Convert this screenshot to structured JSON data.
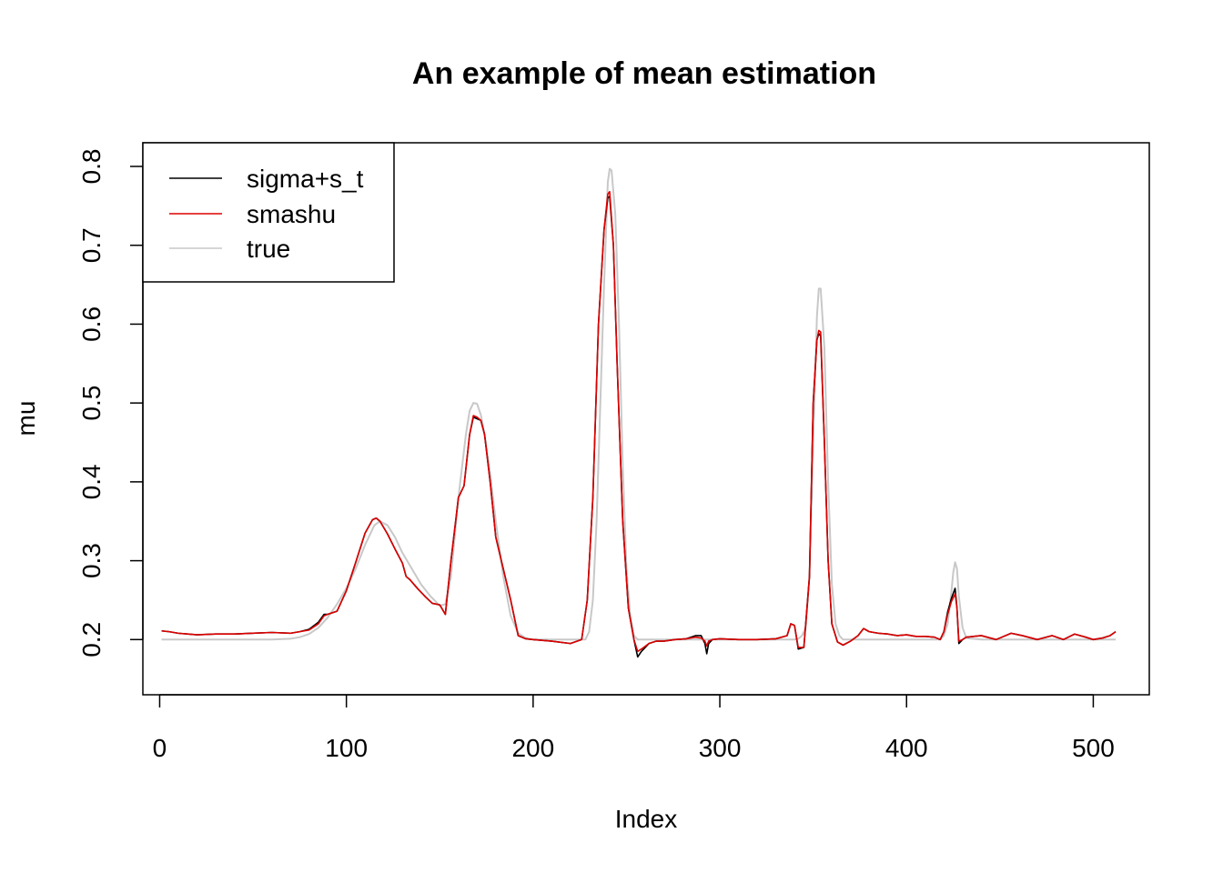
{
  "chart_data": {
    "type": "line",
    "title": "An example of mean estimation",
    "xlabel": "Index",
    "ylabel": "mu",
    "xlim": [
      -9,
      530
    ],
    "ylim": [
      0.13,
      0.83
    ],
    "xticks": [
      0,
      100,
      200,
      300,
      400,
      500
    ],
    "xtick_labels": [
      "0",
      "100",
      "200",
      "300",
      "400",
      "500"
    ],
    "yticks": [
      0.2,
      0.3,
      0.4,
      0.5,
      0.6,
      0.7,
      0.8
    ],
    "ytick_labels": [
      "0.2",
      "0.3",
      "0.4",
      "0.5",
      "0.6",
      "0.7",
      "0.8"
    ],
    "grid": false,
    "legend_position": "top-left",
    "series": [
      {
        "name": "sigma+s_t",
        "color": "#000000",
        "x": [
          1,
          5,
          10,
          15,
          20,
          30,
          40,
          50,
          60,
          70,
          75,
          80,
          85,
          88,
          90,
          95,
          100,
          105,
          110,
          114,
          116,
          118,
          122,
          126,
          130,
          132,
          134,
          138,
          142,
          146,
          150,
          153,
          156,
          160,
          163,
          166,
          168,
          170,
          172,
          174,
          177,
          180,
          184,
          188,
          192,
          196,
          200,
          210,
          220,
          226,
          229,
          232,
          235,
          238,
          240,
          241,
          243,
          245,
          248,
          251,
          254,
          256,
          258,
          262,
          266,
          270,
          276,
          282,
          287,
          290,
          292,
          293,
          294,
          296,
          300,
          310,
          320,
          330,
          336,
          338,
          340,
          342,
          345,
          348,
          350,
          352,
          353,
          354,
          356,
          358,
          360,
          363,
          366,
          370,
          374,
          377,
          380,
          385,
          390,
          395,
          400,
          405,
          410,
          415,
          418,
          420,
          422,
          424,
          426,
          427,
          428,
          430,
          432,
          440,
          448,
          456,
          462,
          470,
          478,
          484,
          490,
          496,
          500,
          505,
          509,
          512
        ],
        "y": [
          0.211,
          0.21,
          0.208,
          0.207,
          0.206,
          0.207,
          0.207,
          0.208,
          0.209,
          0.208,
          0.21,
          0.213,
          0.222,
          0.232,
          0.232,
          0.236,
          0.262,
          0.298,
          0.335,
          0.352,
          0.354,
          0.35,
          0.334,
          0.315,
          0.297,
          0.28,
          0.276,
          0.265,
          0.255,
          0.246,
          0.244,
          0.232,
          0.3,
          0.38,
          0.395,
          0.46,
          0.482,
          0.48,
          0.478,
          0.46,
          0.4,
          0.33,
          0.29,
          0.25,
          0.205,
          0.201,
          0.2,
          0.198,
          0.195,
          0.2,
          0.25,
          0.38,
          0.6,
          0.72,
          0.76,
          0.762,
          0.7,
          0.55,
          0.35,
          0.24,
          0.2,
          0.178,
          0.185,
          0.195,
          0.198,
          0.198,
          0.2,
          0.201,
          0.205,
          0.205,
          0.195,
          0.182,
          0.195,
          0.2,
          0.201,
          0.2,
          0.2,
          0.201,
          0.205,
          0.22,
          0.218,
          0.188,
          0.19,
          0.28,
          0.5,
          0.58,
          0.588,
          0.585,
          0.45,
          0.3,
          0.22,
          0.197,
          0.193,
          0.198,
          0.205,
          0.214,
          0.21,
          0.208,
          0.207,
          0.205,
          0.206,
          0.204,
          0.204,
          0.203,
          0.2,
          0.21,
          0.235,
          0.252,
          0.265,
          0.24,
          0.195,
          0.2,
          0.203,
          0.205,
          0.2,
          0.208,
          0.205,
          0.2,
          0.205,
          0.2,
          0.207,
          0.203,
          0.2,
          0.202,
          0.205,
          0.21
        ]
      },
      {
        "name": "smashu",
        "color": "#DD0000",
        "x": [
          1,
          5,
          10,
          15,
          20,
          30,
          40,
          50,
          60,
          70,
          75,
          80,
          85,
          88,
          90,
          95,
          100,
          105,
          110,
          114,
          116,
          118,
          122,
          126,
          130,
          132,
          134,
          138,
          142,
          146,
          150,
          153,
          156,
          160,
          163,
          166,
          168,
          170,
          172,
          174,
          177,
          180,
          184,
          188,
          192,
          196,
          200,
          210,
          220,
          226,
          229,
          232,
          235,
          238,
          240,
          241,
          243,
          245,
          248,
          251,
          254,
          256,
          258,
          262,
          266,
          270,
          276,
          282,
          287,
          290,
          292,
          293,
          294,
          296,
          300,
          310,
          320,
          330,
          336,
          338,
          340,
          342,
          345,
          348,
          350,
          352,
          353,
          354,
          356,
          358,
          360,
          363,
          366,
          370,
          374,
          377,
          380,
          385,
          390,
          395,
          400,
          405,
          410,
          415,
          418,
          420,
          422,
          424,
          426,
          427,
          428,
          430,
          432,
          440,
          448,
          456,
          462,
          470,
          478,
          484,
          490,
          496,
          500,
          505,
          509,
          512
        ],
        "y": [
          0.211,
          0.21,
          0.208,
          0.207,
          0.206,
          0.207,
          0.207,
          0.208,
          0.209,
          0.208,
          0.21,
          0.212,
          0.22,
          0.23,
          0.232,
          0.236,
          0.262,
          0.298,
          0.335,
          0.352,
          0.354,
          0.35,
          0.334,
          0.315,
          0.297,
          0.28,
          0.276,
          0.265,
          0.255,
          0.246,
          0.244,
          0.232,
          0.3,
          0.38,
          0.395,
          0.46,
          0.484,
          0.482,
          0.478,
          0.46,
          0.4,
          0.33,
          0.29,
          0.25,
          0.205,
          0.201,
          0.2,
          0.198,
          0.195,
          0.2,
          0.25,
          0.38,
          0.6,
          0.72,
          0.765,
          0.768,
          0.7,
          0.55,
          0.35,
          0.24,
          0.2,
          0.185,
          0.188,
          0.195,
          0.198,
          0.198,
          0.2,
          0.201,
          0.203,
          0.202,
          0.198,
          0.192,
          0.198,
          0.2,
          0.201,
          0.2,
          0.2,
          0.201,
          0.205,
          0.22,
          0.218,
          0.19,
          0.19,
          0.28,
          0.5,
          0.58,
          0.592,
          0.59,
          0.45,
          0.3,
          0.22,
          0.197,
          0.193,
          0.198,
          0.205,
          0.214,
          0.21,
          0.208,
          0.207,
          0.205,
          0.206,
          0.204,
          0.204,
          0.203,
          0.2,
          0.21,
          0.232,
          0.248,
          0.258,
          0.24,
          0.198,
          0.2,
          0.203,
          0.205,
          0.2,
          0.208,
          0.205,
          0.2,
          0.205,
          0.2,
          0.207,
          0.203,
          0.2,
          0.202,
          0.205,
          0.21
        ]
      },
      {
        "name": "true",
        "color": "#C8C8C8",
        "x": [
          1,
          10,
          20,
          30,
          40,
          50,
          60,
          70,
          75,
          80,
          85,
          90,
          95,
          100,
          105,
          110,
          115,
          118,
          122,
          126,
          130,
          135,
          140,
          145,
          150,
          153,
          156,
          160,
          164,
          166,
          168,
          170,
          172,
          174,
          177,
          180,
          184,
          188,
          192,
          196,
          200,
          210,
          220,
          228,
          230,
          232,
          234,
          236,
          238,
          240,
          241,
          242,
          244,
          246,
          248,
          250,
          252,
          254,
          256,
          260,
          270,
          280,
          290,
          300,
          310,
          320,
          330,
          340,
          342,
          344,
          346,
          348,
          350,
          352,
          353,
          354,
          356,
          358,
          360,
          362,
          364,
          366,
          370,
          380,
          390,
          400,
          410,
          418,
          420,
          422,
          424,
          425,
          426,
          427,
          428,
          430,
          432,
          440,
          450,
          460,
          470,
          480,
          490,
          500,
          512
        ],
        "y": [
          0.2,
          0.2,
          0.2,
          0.2,
          0.2,
          0.2,
          0.2,
          0.201,
          0.203,
          0.207,
          0.215,
          0.228,
          0.245,
          0.265,
          0.29,
          0.32,
          0.345,
          0.35,
          0.345,
          0.33,
          0.31,
          0.29,
          0.27,
          0.255,
          0.243,
          0.245,
          0.28,
          0.38,
          0.46,
          0.49,
          0.5,
          0.499,
          0.485,
          0.46,
          0.41,
          0.35,
          0.28,
          0.23,
          0.208,
          0.202,
          0.2,
          0.2,
          0.2,
          0.2,
          0.21,
          0.25,
          0.35,
          0.5,
          0.65,
          0.78,
          0.797,
          0.795,
          0.74,
          0.6,
          0.42,
          0.29,
          0.23,
          0.205,
          0.2,
          0.2,
          0.2,
          0.2,
          0.2,
          0.2,
          0.2,
          0.2,
          0.2,
          0.2,
          0.201,
          0.205,
          0.215,
          0.28,
          0.45,
          0.61,
          0.645,
          0.645,
          0.57,
          0.4,
          0.27,
          0.22,
          0.205,
          0.2,
          0.2,
          0.2,
          0.2,
          0.2,
          0.2,
          0.2,
          0.205,
          0.22,
          0.26,
          0.285,
          0.298,
          0.29,
          0.255,
          0.215,
          0.202,
          0.2,
          0.2,
          0.2,
          0.2,
          0.2,
          0.2,
          0.2,
          0.2
        ]
      }
    ]
  }
}
